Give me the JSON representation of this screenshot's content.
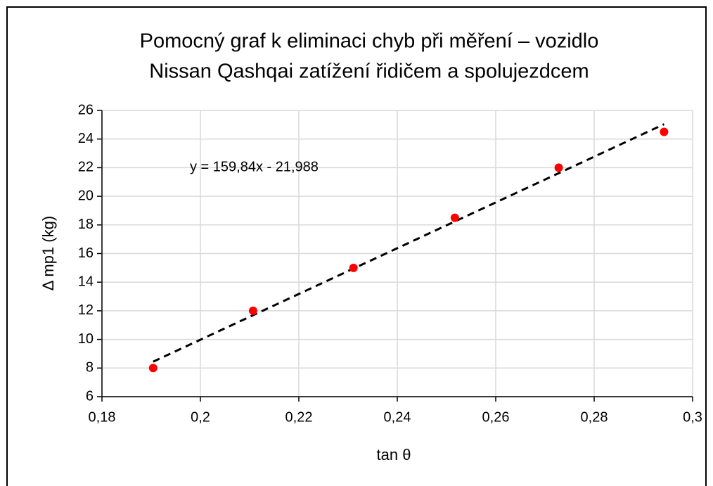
{
  "chart_data": {
    "type": "scatter",
    "title": [
      "Pomocný graf k eliminaci chyb při měření – vozidlo",
      "Nissan Qashqai zatížení řidičem a spolujezdcem"
    ],
    "xlabel": "tan θ",
    "ylabel": "Δ mp1 (kg)",
    "x": [
      0.1904,
      0.2107,
      0.2311,
      0.2517,
      0.2728,
      0.2942
    ],
    "values": [
      8,
      12,
      15,
      18.5,
      22,
      24.5
    ],
    "color": "#ff0000",
    "trendline": {
      "label": "y = 159,84x - 21,988",
      "slope": 159.84,
      "intercept": -21.988,
      "color": "#000000"
    },
    "xlim": [
      0.18,
      0.3
    ],
    "xticks": [
      {
        "value": 0.18,
        "label": "0,18"
      },
      {
        "value": 0.2,
        "label": "0,2"
      },
      {
        "value": 0.22,
        "label": "0,22"
      },
      {
        "value": 0.24,
        "label": "0,24"
      },
      {
        "value": 0.26,
        "label": "0,26"
      },
      {
        "value": 0.28,
        "label": "0,28"
      },
      {
        "value": 0.3,
        "label": "0,3"
      }
    ],
    "ylim": [
      6,
      26
    ],
    "yticks": [
      6,
      8,
      10,
      12,
      14,
      16,
      18,
      20,
      22,
      24,
      26
    ],
    "grid": true
  }
}
